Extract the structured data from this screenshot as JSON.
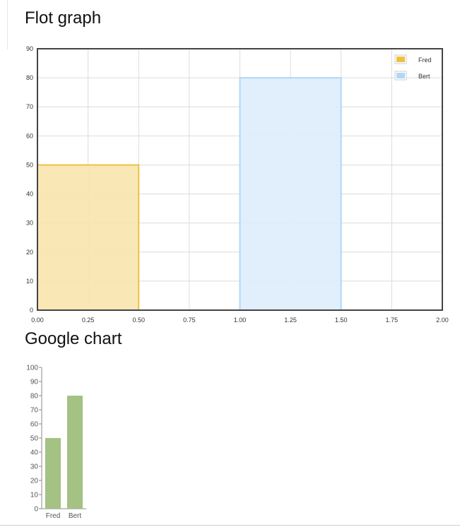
{
  "flot": {
    "title": "Flot graph",
    "chart_data": {
      "type": "bar",
      "xlim": [
        0,
        2
      ],
      "ylim": [
        0,
        90
      ],
      "x_ticks": [
        "0.00",
        "0.25",
        "0.50",
        "0.75",
        "1.00",
        "1.25",
        "1.50",
        "1.75",
        "2.00"
      ],
      "y_ticks": [
        "0",
        "10",
        "20",
        "30",
        "40",
        "50",
        "60",
        "70",
        "80",
        "90"
      ],
      "grid": true,
      "legend_position": "top-right",
      "series": [
        {
          "name": "Fred",
          "x_start": 0.0,
          "x_end": 0.5,
          "value": 50,
          "fill": "#f8e4ae",
          "stroke": "#edc240"
        },
        {
          "name": "Bert",
          "x_start": 1.0,
          "x_end": 1.5,
          "value": 80,
          "fill": "#ddedfb",
          "stroke": "#afd8f8"
        }
      ]
    }
  },
  "google": {
    "title": "Google chart",
    "chart_data": {
      "type": "bar",
      "categories": [
        "Fred",
        "Bert"
      ],
      "values": [
        50,
        80
      ],
      "ylim": [
        0,
        100
      ],
      "y_ticks": [
        "0",
        "10",
        "20",
        "30",
        "40",
        "50",
        "60",
        "70",
        "80",
        "90",
        "100"
      ],
      "bar_color": "#a3c283"
    }
  }
}
